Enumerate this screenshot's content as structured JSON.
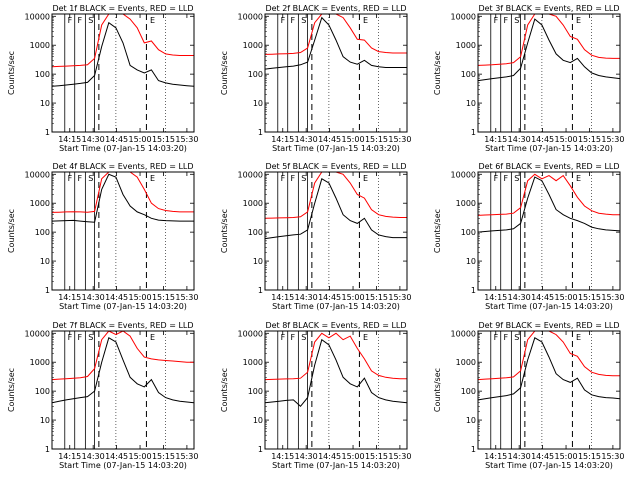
{
  "figure": {
    "ylabel": "Counts/sec",
    "xlabel": "Start Time (07-Jan-15 14:03:20)",
    "xticks": [
      "14:15",
      "14:30",
      "14:45",
      "15:00",
      "15:15",
      "15:30"
    ],
    "yticks": [
      "1",
      "10",
      "100",
      "1000",
      "10000"
    ],
    "colors": {
      "events": "#000000",
      "lld": "#ff0000",
      "axes": "#000000"
    },
    "marker_labels": [
      "F",
      "F",
      "S",
      "E"
    ]
  },
  "chart_data": [
    {
      "type": "line",
      "title": "Det 1f BLACK = Events, RED = LLD",
      "x": [
        0,
        5,
        10,
        15,
        20,
        25,
        30,
        35,
        40,
        45,
        50,
        55,
        60,
        65,
        70,
        75,
        80,
        85,
        90,
        95,
        100
      ],
      "ylim": [
        1,
        12000
      ],
      "series": [
        {
          "name": "Events",
          "color": "#000000",
          "values": [
            38,
            40,
            42,
            45,
            48,
            52,
            90,
            900,
            6000,
            4000,
            1200,
            200,
            140,
            110,
            140,
            60,
            50,
            45,
            42,
            40,
            38
          ]
        },
        {
          "name": "LLD",
          "color": "#ff0000",
          "values": [
            180,
            185,
            190,
            195,
            200,
            210,
            350,
            5000,
            12000,
            12000,
            12000,
            8000,
            4000,
            1200,
            1400,
            700,
            500,
            460,
            440,
            440,
            440
          ]
        }
      ]
    },
    {
      "type": "line",
      "title": "Det 2f BLACK = Events, RED = LLD",
      "x": [
        0,
        5,
        10,
        15,
        20,
        25,
        30,
        35,
        40,
        45,
        50,
        55,
        60,
        65,
        70,
        75,
        80,
        85,
        90,
        95,
        100
      ],
      "ylim": [
        1,
        12000
      ],
      "series": [
        {
          "name": "Events",
          "color": "#000000",
          "values": [
            150,
            160,
            170,
            180,
            190,
            210,
            260,
            1500,
            9000,
            5000,
            1500,
            400,
            260,
            220,
            300,
            200,
            180,
            170,
            170,
            170,
            170
          ]
        },
        {
          "name": "LLD",
          "color": "#ff0000",
          "values": [
            480,
            490,
            500,
            510,
            520,
            560,
            800,
            6000,
            12000,
            12000,
            12000,
            9000,
            4000,
            1600,
            1500,
            800,
            600,
            560,
            540,
            540,
            540
          ]
        }
      ]
    },
    {
      "type": "line",
      "title": "Det 3f BLACK = Events, RED = LLD",
      "x": [
        0,
        5,
        10,
        15,
        20,
        25,
        30,
        35,
        40,
        45,
        50,
        55,
        60,
        65,
        70,
        75,
        80,
        85,
        90,
        95,
        100
      ],
      "ylim": [
        1,
        12000
      ],
      "series": [
        {
          "name": "Events",
          "color": "#000000",
          "values": [
            60,
            65,
            70,
            75,
            80,
            90,
            160,
            1200,
            8000,
            5000,
            1500,
            500,
            300,
            250,
            350,
            180,
            110,
            90,
            80,
            75,
            70
          ]
        },
        {
          "name": "LLD",
          "color": "#ff0000",
          "values": [
            200,
            205,
            210,
            220,
            230,
            250,
            400,
            5000,
            12000,
            12000,
            12000,
            10000,
            5000,
            2000,
            1600,
            700,
            450,
            380,
            360,
            350,
            350
          ]
        }
      ]
    },
    {
      "type": "line",
      "title": "Det 4f BLACK = Events, RED = LLD",
      "x": [
        0,
        5,
        10,
        15,
        20,
        25,
        30,
        35,
        40,
        45,
        50,
        55,
        60,
        65,
        70,
        75,
        80,
        85,
        90,
        95,
        100
      ],
      "ylim": [
        1,
        12000
      ],
      "series": [
        {
          "name": "Events",
          "color": "#000000",
          "values": [
            240,
            245,
            250,
            255,
            240,
            230,
            220,
            3000,
            10000,
            8000,
            2000,
            800,
            500,
            400,
            300,
            260,
            250,
            245,
            240,
            240,
            240
          ]
        },
        {
          "name": "LLD",
          "color": "#ff0000",
          "values": [
            480,
            490,
            500,
            510,
            500,
            490,
            520,
            7000,
            12000,
            12000,
            12000,
            12000,
            8000,
            3000,
            1000,
            650,
            560,
            520,
            500,
            500,
            500
          ]
        }
      ]
    },
    {
      "type": "line",
      "title": "Det 5f BLACK = Events, RED = LLD",
      "x": [
        0,
        5,
        10,
        15,
        20,
        25,
        30,
        35,
        40,
        45,
        50,
        55,
        60,
        65,
        70,
        75,
        80,
        85,
        90,
        95,
        100
      ],
      "ylim": [
        1,
        12000
      ],
      "series": [
        {
          "name": "Events",
          "color": "#000000",
          "values": [
            60,
            65,
            70,
            75,
            80,
            85,
            120,
            1000,
            7000,
            5000,
            1500,
            400,
            250,
            200,
            300,
            120,
            80,
            70,
            65,
            65,
            65
          ]
        },
        {
          "name": "LLD",
          "color": "#ff0000",
          "values": [
            300,
            305,
            310,
            315,
            320,
            340,
            500,
            5000,
            12000,
            12000,
            12000,
            10000,
            5000,
            2000,
            1500,
            600,
            400,
            350,
            330,
            320,
            320
          ]
        }
      ]
    },
    {
      "type": "line",
      "title": "Det 6f BLACK = Events, RED = LLD",
      "x": [
        0,
        5,
        10,
        15,
        20,
        25,
        30,
        35,
        40,
        45,
        50,
        55,
        60,
        65,
        70,
        75,
        80,
        85,
        90,
        95,
        100
      ],
      "ylim": [
        1,
        12000
      ],
      "series": [
        {
          "name": "Events",
          "color": "#000000",
          "values": [
            100,
            105,
            110,
            115,
            120,
            130,
            200,
            1500,
            8000,
            6000,
            2000,
            600,
            400,
            300,
            250,
            200,
            150,
            130,
            120,
            115,
            110
          ]
        },
        {
          "name": "LLD",
          "color": "#ff0000",
          "values": [
            380,
            390,
            400,
            410,
            420,
            450,
            700,
            6000,
            10000,
            7000,
            9000,
            6000,
            9000,
            4000,
            1600,
            800,
            550,
            450,
            420,
            400,
            400
          ]
        }
      ]
    },
    {
      "type": "line",
      "title": "Det 7f BLACK = Events, RED = LLD",
      "x": [
        0,
        5,
        10,
        15,
        20,
        25,
        30,
        35,
        40,
        45,
        50,
        55,
        60,
        65,
        70,
        75,
        80,
        85,
        90,
        95,
        100
      ],
      "ylim": [
        1,
        12000
      ],
      "series": [
        {
          "name": "Events",
          "color": "#000000",
          "values": [
            40,
            45,
            50,
            55,
            60,
            65,
            100,
            1000,
            7000,
            5000,
            1200,
            300,
            180,
            140,
            250,
            90,
            60,
            50,
            45,
            42,
            40
          ]
        },
        {
          "name": "LLD",
          "color": "#ff0000",
          "values": [
            250,
            260,
            270,
            280,
            290,
            320,
            600,
            6000,
            12000,
            9000,
            12000,
            8000,
            3000,
            1500,
            1300,
            1200,
            1150,
            1100,
            1050,
            1000,
            1000
          ]
        }
      ]
    },
    {
      "type": "line",
      "title": "Det 8f BLACK = Events, RED = LLD",
      "x": [
        0,
        5,
        10,
        15,
        20,
        25,
        30,
        35,
        40,
        45,
        50,
        55,
        60,
        65,
        70,
        75,
        80,
        85,
        90,
        95,
        100
      ],
      "ylim": [
        1,
        12000
      ],
      "series": [
        {
          "name": "Events",
          "color": "#000000",
          "values": [
            40,
            42,
            45,
            48,
            50,
            30,
            60,
            800,
            6000,
            4000,
            1200,
            300,
            180,
            140,
            280,
            90,
            60,
            50,
            45,
            42,
            40
          ]
        },
        {
          "name": "LLD",
          "color": "#ff0000",
          "values": [
            250,
            255,
            260,
            265,
            270,
            280,
            450,
            5000,
            10000,
            7000,
            10000,
            6000,
            8000,
            3000,
            1300,
            500,
            350,
            300,
            280,
            270,
            270
          ]
        }
      ]
    },
    {
      "type": "line",
      "title": "Det 9f BLACK = Events, RED = LLD",
      "x": [
        0,
        5,
        10,
        15,
        20,
        25,
        30,
        35,
        40,
        45,
        50,
        55,
        60,
        65,
        70,
        75,
        80,
        85,
        90,
        95,
        100
      ],
      "ylim": [
        1,
        12000
      ],
      "series": [
        {
          "name": "Events",
          "color": "#000000",
          "values": [
            50,
            55,
            60,
            65,
            70,
            80,
            130,
            1200,
            7000,
            5000,
            1500,
            400,
            250,
            200,
            280,
            110,
            75,
            65,
            60,
            58,
            55
          ]
        },
        {
          "name": "LLD",
          "color": "#ff0000",
          "values": [
            250,
            260,
            270,
            280,
            290,
            310,
            500,
            6000,
            12000,
            12000,
            12000,
            9000,
            5000,
            2000,
            1600,
            700,
            450,
            380,
            350,
            340,
            340
          ]
        }
      ]
    }
  ]
}
